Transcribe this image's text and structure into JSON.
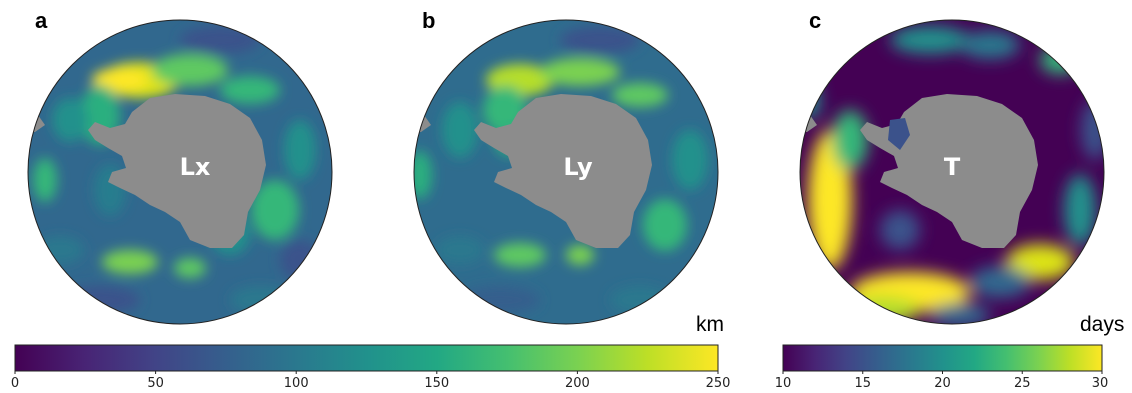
{
  "panels": [
    {
      "letter": "a",
      "map_label": "Lx",
      "variable": "Lx"
    },
    {
      "letter": "b",
      "map_label": "Ly",
      "variable": "Ly"
    },
    {
      "letter": "c",
      "map_label": "T",
      "variable": "T"
    }
  ],
  "colorbars": [
    {
      "unit": "km",
      "min": 0,
      "max": 250,
      "ticks": [
        "0",
        "50",
        "100",
        "150",
        "200",
        "250"
      ]
    },
    {
      "unit": "days",
      "min": 10,
      "max": 30,
      "ticks": [
        "10",
        "15",
        "20",
        "25",
        "30"
      ]
    }
  ],
  "colors": {
    "land": "#8c8c8c",
    "colormap": "viridis"
  }
}
